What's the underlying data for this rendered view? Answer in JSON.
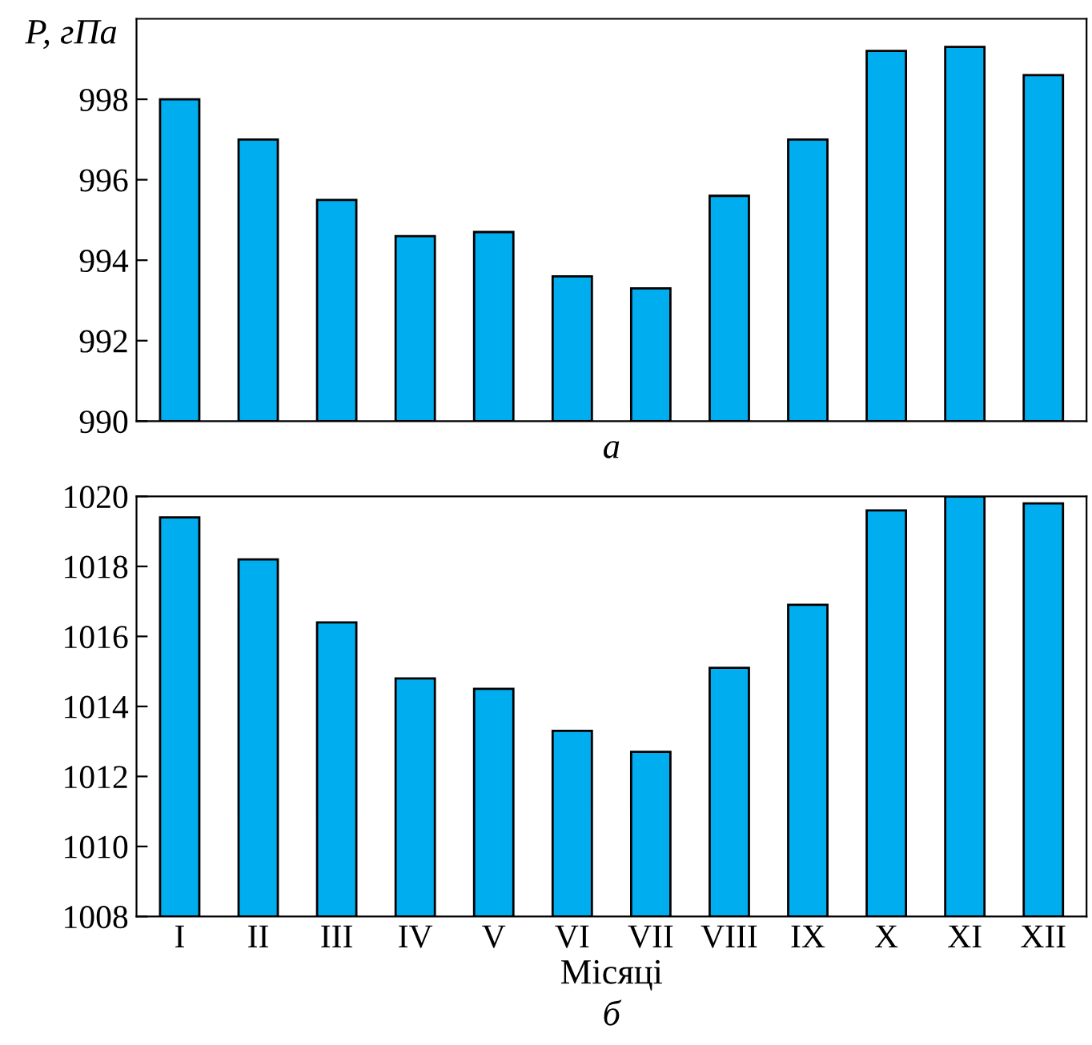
{
  "chart_data": [
    {
      "type": "bar",
      "ylabel": "P, гПа",
      "annotations": [
        "а"
      ],
      "categories": [
        null,
        null,
        null,
        null,
        null,
        null,
        null,
        null,
        null,
        null,
        null,
        null
      ],
      "color": "#00aeef",
      "values": [
        998.0,
        997.0,
        995.5,
        994.6,
        994.7,
        993.6,
        993.3,
        995.6,
        997.0,
        999.2,
        999.3,
        998.6
      ],
      "ylim": [
        990,
        1000
      ],
      "yticks": [
        990,
        992,
        994,
        996,
        998
      ],
      "grid": false,
      "legend": false
    },
    {
      "type": "bar",
      "xlabel": "Місяці",
      "annotations": [
        "б"
      ],
      "categories": [
        "I",
        "II",
        "III",
        "IV",
        "V",
        "VI",
        "VII",
        "VIII",
        "IX",
        "X",
        "XI",
        "XII"
      ],
      "color": "#00aeef",
      "values": [
        1019.4,
        1018.2,
        1016.4,
        1014.8,
        1014.5,
        1013.3,
        1012.7,
        1015.1,
        1016.9,
        1019.6,
        1020.0,
        1019.8
      ],
      "ylim": [
        1008,
        1020
      ],
      "yticks": [
        1008,
        1010,
        1012,
        1014,
        1016,
        1018,
        1020
      ],
      "grid": false,
      "legend": false
    }
  ]
}
